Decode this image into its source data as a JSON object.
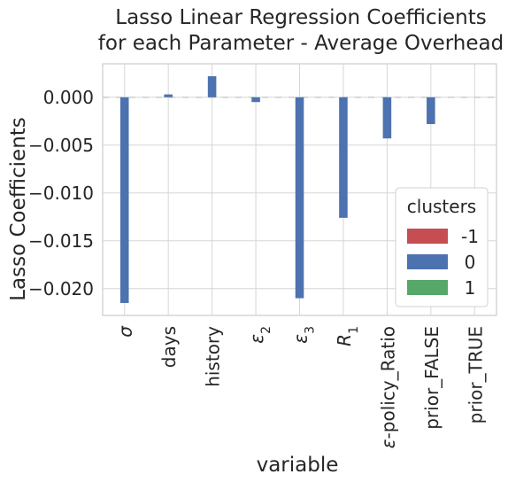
{
  "chart_data": {
    "type": "bar",
    "title_lines": [
      "Lasso Linear Regression Coefficients",
      "for each Parameter - Average Overhead"
    ],
    "xlabel": "variable",
    "ylabel": "Lasso Coefficients",
    "categories": [
      "σ",
      "days",
      "history",
      "ε2",
      "ε3",
      "R1",
      "ε-policy_Ratio",
      "prior_FALSE",
      "prior_TRUE"
    ],
    "series": [
      {
        "name": "-1",
        "color": "#c44e52",
        "values": [
          0,
          0,
          0,
          0,
          0,
          0,
          0,
          0,
          0
        ]
      },
      {
        "name": "0",
        "color": "#4c72b0",
        "values": [
          -0.0215,
          0.0003,
          0.0022,
          -0.0005,
          -0.021,
          -0.0126,
          -0.0043,
          -0.0028,
          0
        ]
      },
      {
        "name": "1",
        "color": "#55a868",
        "values": [
          0,
          0,
          0,
          0,
          0,
          0,
          0,
          0,
          0
        ]
      }
    ],
    "ylim": [
      -0.0228,
      0.0035
    ],
    "yticks": [
      0.0,
      -0.005,
      -0.01,
      -0.015,
      -0.02
    ],
    "ytick_labels": [
      "0.000",
      "−0.005",
      "−0.010",
      "−0.015",
      "−0.020"
    ],
    "grid": true,
    "legend": {
      "title": "clusters",
      "placement": "lower-right"
    }
  }
}
